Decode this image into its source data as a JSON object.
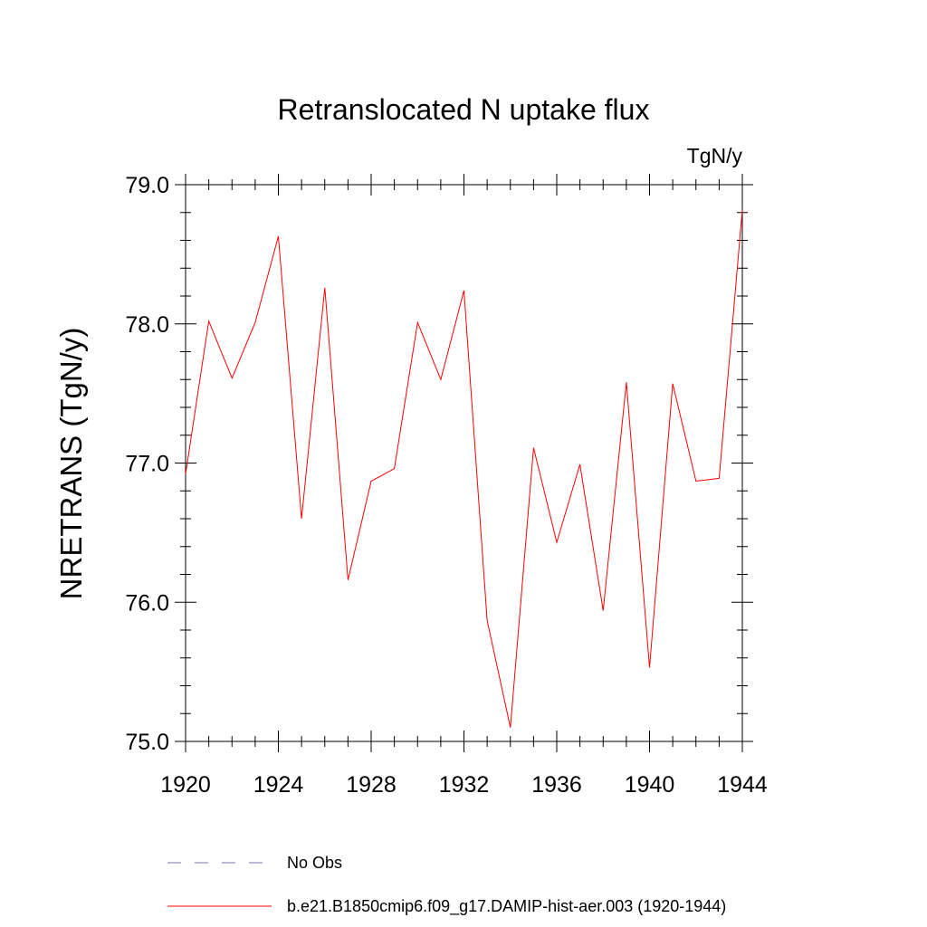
{
  "chart_data": {
    "type": "line",
    "title": "Retranslocated N uptake flux",
    "units": "TgN/y",
    "ylabel": "NRETRANS  (TgN/y)",
    "xlabel": "",
    "xlim": [
      1920,
      1944
    ],
    "ylim": [
      75.0,
      79.0
    ],
    "xticks": [
      1920,
      1924,
      1928,
      1932,
      1936,
      1940,
      1944
    ],
    "yticks": [
      "75.0",
      "76.0",
      "77.0",
      "78.0",
      "79.0"
    ],
    "grid": false,
    "legend_position": "bottom",
    "legend": [
      {
        "label": "No Obs",
        "style": "dashed",
        "color": "#7b6fb0"
      },
      {
        "label": "b.e21.B1850cmip6.f09_g17.DAMIP-hist-aer.003 (1920-1944)",
        "style": "solid",
        "color": "#ff0000"
      }
    ],
    "series": [
      {
        "name": "b.e21.B1850cmip6.f09_g17.DAMIP-hist-aer.003 (1920-1944)",
        "color": "#ff0000",
        "x": [
          1920,
          1921,
          1922,
          1923,
          1924,
          1925,
          1926,
          1927,
          1928,
          1929,
          1930,
          1931,
          1932,
          1933,
          1934,
          1935,
          1936,
          1937,
          1938,
          1939,
          1940,
          1941,
          1942,
          1943,
          1944
        ],
        "values": [
          76.92,
          78.02,
          77.61,
          78.01,
          78.63,
          76.6,
          78.26,
          76.16,
          76.87,
          76.96,
          78.01,
          77.6,
          78.24,
          75.87,
          75.1,
          77.11,
          76.43,
          76.99,
          75.94,
          77.58,
          75.53,
          77.57,
          76.87,
          76.89,
          78.82
        ]
      }
    ]
  }
}
